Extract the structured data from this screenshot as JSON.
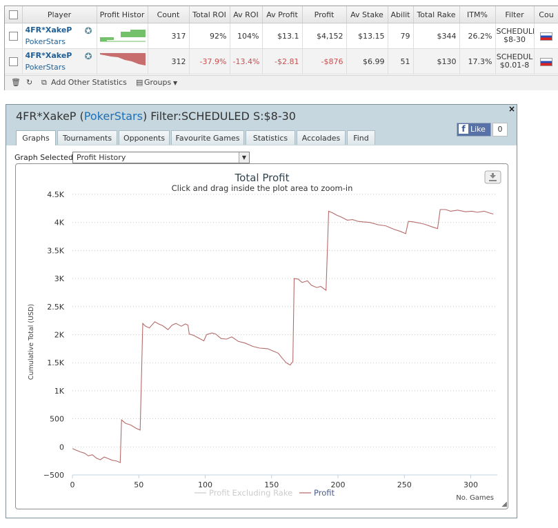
{
  "table": {
    "columns": [
      "",
      "Player",
      "Profit Histor",
      "Count",
      "Total ROI",
      "Av ROI",
      "Av Profit",
      "Profit",
      "Av Stake",
      "Abilit",
      "Total Rake",
      "ITM%",
      "Filter",
      "Cou"
    ],
    "rows": [
      {
        "player": "4FR*XakeP",
        "network": "PokerStars",
        "count": "317",
        "total_roi": "92%",
        "av_roi": "104%",
        "av_profit": "$13.1",
        "profit": "$4,152",
        "av_stake": "$13.15",
        "ability": "79",
        "total_rake": "$344",
        "itm": "26.2%",
        "filter_l1": "SCHEDULI",
        "filter_l2": "$8-30",
        "spark_color": "#6cbf63",
        "negative": false
      },
      {
        "player": "4FR*XakeP",
        "network": "PokerStars",
        "count": "312",
        "total_roi": "-37.9%",
        "av_roi": "-13.4%",
        "av_profit": "-$2.81",
        "profit": "-$876",
        "av_stake": "$6.99",
        "ability": "51",
        "total_rake": "$130",
        "itm": "17.3%",
        "filter_l1": "SCHEDUL",
        "filter_l2": "$0.01-8",
        "spark_color": "#c46565",
        "negative": true
      }
    ],
    "footer": {
      "add_label": "Add Other Statistics",
      "groups_label": "Groups"
    }
  },
  "panel": {
    "title_player": "4FR*XakeP",
    "title_network_open": "(",
    "title_network": "PokerStars",
    "title_network_close": ")",
    "title_filter": "Filter:SCHEDULED S:$8-30",
    "close_label": "×",
    "like_label": "Like",
    "like_count": "0",
    "tabs": [
      "Graphs",
      "Tournaments",
      "Opponents",
      "Favourite Games",
      "Statistics",
      "Accolades",
      "Find"
    ],
    "graph_selected_label": "Graph Selected:",
    "graph_selected_value": "Profit History"
  },
  "chart_data": {
    "type": "line",
    "title": "Total Profit",
    "subtitle": "Click and drag inside the plot area to zoom-in",
    "ylabel": "Cumulative Total (USD)",
    "xlabel": "No. Games",
    "xlim": [
      0,
      320
    ],
    "ylim": [
      -500,
      4500
    ],
    "x_ticks": [
      0,
      50,
      100,
      150,
      200,
      250,
      300
    ],
    "y_ticks": [
      -500,
      0,
      500,
      1000,
      1500,
      2000,
      2500,
      3000,
      3500,
      4000,
      4500
    ],
    "y_tick_labels": [
      "−500",
      "0",
      "500",
      "1K",
      "1.5K",
      "2K",
      "2.5K",
      "3K",
      "3.5K",
      "4K",
      "4.5K"
    ],
    "grid": "horizontal dotted",
    "legend": "bottom-center",
    "series": [
      {
        "name": "Profit Excluding Rake",
        "color": "#cccccc",
        "points": []
      },
      {
        "name": "Profit",
        "color": "#b56a6a",
        "points": [
          [
            0,
            -30
          ],
          [
            3,
            -60
          ],
          [
            6,
            -90
          ],
          [
            9,
            -110
          ],
          [
            12,
            -160
          ],
          [
            15,
            -140
          ],
          [
            18,
            -200
          ],
          [
            21,
            -230
          ],
          [
            24,
            -180
          ],
          [
            27,
            -210
          ],
          [
            30,
            -240
          ],
          [
            33,
            -250
          ],
          [
            36,
            -280
          ],
          [
            37,
            480
          ],
          [
            40,
            420
          ],
          [
            44,
            390
          ],
          [
            48,
            330
          ],
          [
            51,
            300
          ],
          [
            53,
            2200
          ],
          [
            55,
            2150
          ],
          [
            58,
            2120
          ],
          [
            62,
            2230
          ],
          [
            65,
            2190
          ],
          [
            68,
            2160
          ],
          [
            72,
            2090
          ],
          [
            75,
            2170
          ],
          [
            78,
            2200
          ],
          [
            82,
            2150
          ],
          [
            85,
            2190
          ],
          [
            87,
            2170
          ],
          [
            88,
            2010
          ],
          [
            91,
            1990
          ],
          [
            95,
            1940
          ],
          [
            99,
            1890
          ],
          [
            101,
            2000
          ],
          [
            105,
            2030
          ],
          [
            108,
            2010
          ],
          [
            112,
            1930
          ],
          [
            116,
            1920
          ],
          [
            120,
            1960
          ],
          [
            125,
            1880
          ],
          [
            130,
            1850
          ],
          [
            136,
            1790
          ],
          [
            141,
            1760
          ],
          [
            147,
            1750
          ],
          [
            151,
            1710
          ],
          [
            155,
            1670
          ],
          [
            158,
            1580
          ],
          [
            161,
            1500
          ],
          [
            164,
            1460
          ],
          [
            166,
            1520
          ],
          [
            167,
            3000
          ],
          [
            170,
            2990
          ],
          [
            173,
            2930
          ],
          [
            177,
            2960
          ],
          [
            180,
            2880
          ],
          [
            184,
            2840
          ],
          [
            187,
            2860
          ],
          [
            191,
            2790
          ],
          [
            193,
            4200
          ],
          [
            196,
            4170
          ],
          [
            199,
            4130
          ],
          [
            203,
            4090
          ],
          [
            207,
            4040
          ],
          [
            211,
            4050
          ],
          [
            215,
            4020
          ],
          [
            219,
            4010
          ],
          [
            224,
            4000
          ],
          [
            230,
            3960
          ],
          [
            236,
            3940
          ],
          [
            242,
            3880
          ],
          [
            247,
            3840
          ],
          [
            251,
            3800
          ],
          [
            253,
            4020
          ],
          [
            257,
            4010
          ],
          [
            261,
            3990
          ],
          [
            265,
            3970
          ],
          [
            271,
            3920
          ],
          [
            275,
            3890
          ],
          [
            277,
            4230
          ],
          [
            281,
            4230
          ],
          [
            285,
            4200
          ],
          [
            290,
            4220
          ],
          [
            296,
            4190
          ],
          [
            301,
            4200
          ],
          [
            305,
            4180
          ],
          [
            310,
            4200
          ],
          [
            314,
            4170
          ],
          [
            317,
            4150
          ]
        ]
      }
    ]
  },
  "icons": {
    "sparkline": "profit-history-sparkline",
    "star": "star-icon",
    "flag": "country-flag-icon",
    "export": "export-download-icon"
  }
}
